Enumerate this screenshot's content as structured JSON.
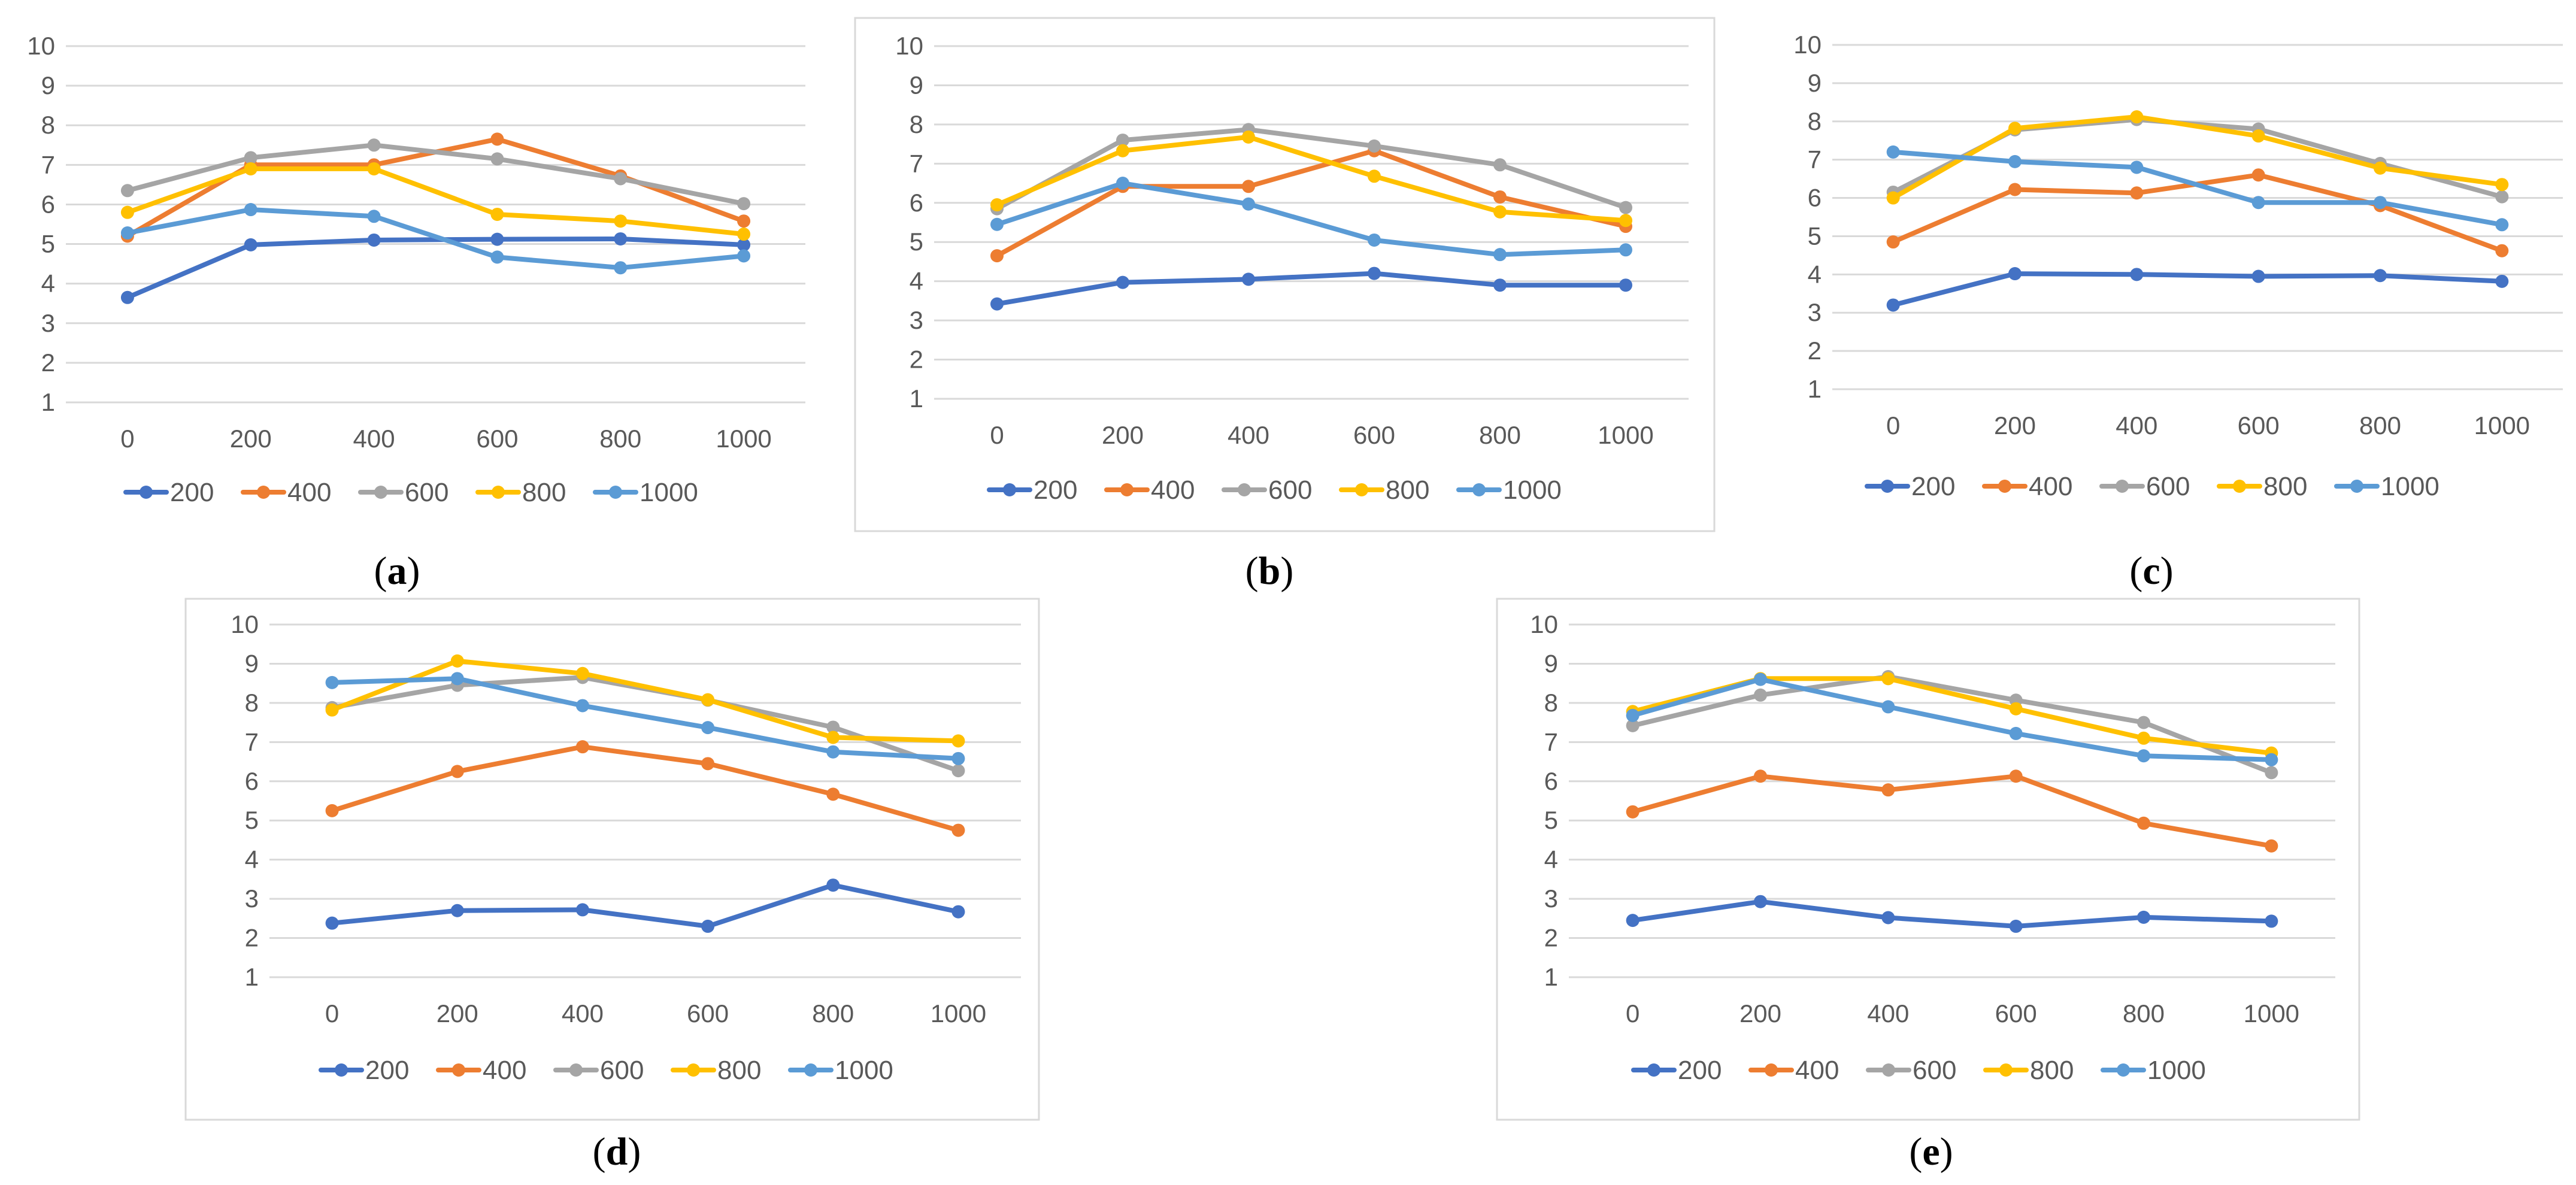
{
  "colors": {
    "s200": "#4472c4",
    "s400": "#ed7d31",
    "s600": "#a5a5a5",
    "s800": "#ffc000",
    "s1000": "#5b9bd5"
  },
  "chart_data": [
    {
      "id": "a",
      "type": "line",
      "caption_open": "(",
      "caption_letter": "a",
      "caption_close": ")",
      "x": [
        0,
        200,
        400,
        600,
        800,
        1000
      ],
      "categories": [
        "0",
        "200",
        "400",
        "600",
        "800",
        "1000"
      ],
      "ylim": [
        1,
        10
      ],
      "yticks": [
        1,
        2,
        3,
        4,
        5,
        6,
        7,
        8,
        9,
        10
      ],
      "grid": true,
      "legend_position": "bottom",
      "series": [
        {
          "name": "200",
          "values": [
            3.65,
            4.98,
            5.1,
            5.12,
            5.13,
            4.98
          ]
        },
        {
          "name": "400",
          "values": [
            5.2,
            7.0,
            7.0,
            7.65,
            6.72,
            5.58
          ]
        },
        {
          "name": "600",
          "values": [
            6.35,
            7.18,
            7.5,
            7.15,
            6.65,
            6.02
          ]
        },
        {
          "name": "800",
          "values": [
            5.8,
            6.9,
            6.9,
            5.75,
            5.58,
            5.25
          ]
        },
        {
          "name": "1000",
          "values": [
            5.28,
            5.87,
            5.7,
            4.67,
            4.4,
            4.7
          ]
        }
      ]
    },
    {
      "id": "b",
      "type": "line",
      "caption_open": "(",
      "caption_letter": "b",
      "caption_close": ")",
      "x": [
        0,
        200,
        400,
        600,
        800,
        1000
      ],
      "categories": [
        "0",
        "200",
        "400",
        "600",
        "800",
        "1000"
      ],
      "ylim": [
        1,
        10
      ],
      "yticks": [
        1,
        2,
        3,
        4,
        5,
        6,
        7,
        8,
        9,
        10
      ],
      "grid": true,
      "legend_position": "bottom",
      "series": [
        {
          "name": "200",
          "values": [
            3.42,
            3.97,
            4.05,
            4.2,
            3.9,
            3.9
          ]
        },
        {
          "name": "400",
          "values": [
            4.65,
            6.42,
            6.42,
            7.33,
            6.15,
            5.4
          ]
        },
        {
          "name": "600",
          "values": [
            5.85,
            7.6,
            7.87,
            7.45,
            6.97,
            5.88
          ]
        },
        {
          "name": "800",
          "values": [
            5.95,
            7.33,
            7.68,
            6.68,
            5.77,
            5.55
          ]
        },
        {
          "name": "1000",
          "values": [
            5.45,
            6.5,
            5.97,
            5.05,
            4.68,
            4.8
          ]
        }
      ]
    },
    {
      "id": "c",
      "type": "line",
      "caption_open": "(",
      "caption_letter": "c",
      "caption_close": ")",
      "x": [
        0,
        200,
        400,
        600,
        800,
        1000
      ],
      "categories": [
        "0",
        "200",
        "400",
        "600",
        "800",
        "1000"
      ],
      "ylim": [
        1,
        10
      ],
      "yticks": [
        1,
        2,
        3,
        4,
        5,
        6,
        7,
        8,
        9,
        10
      ],
      "grid": true,
      "legend_position": "bottom",
      "series": [
        {
          "name": "200",
          "values": [
            3.2,
            4.02,
            4.0,
            3.95,
            3.97,
            3.82
          ]
        },
        {
          "name": "400",
          "values": [
            4.85,
            6.22,
            6.13,
            6.6,
            5.8,
            4.62
          ]
        },
        {
          "name": "600",
          "values": [
            6.15,
            7.78,
            8.05,
            7.8,
            6.9,
            6.03
          ]
        },
        {
          "name": "800",
          "values": [
            6.0,
            7.82,
            8.12,
            7.62,
            6.78,
            6.35
          ]
        },
        {
          "name": "1000",
          "values": [
            7.2,
            6.95,
            6.8,
            5.88,
            5.88,
            5.3
          ]
        }
      ]
    },
    {
      "id": "d",
      "type": "line",
      "caption_open": "(",
      "caption_letter": "d",
      "caption_close": ")",
      "x": [
        0,
        200,
        400,
        600,
        800,
        1000
      ],
      "categories": [
        "0",
        "200",
        "400",
        "600",
        "800",
        "1000"
      ],
      "ylim": [
        1,
        10
      ],
      "yticks": [
        1,
        2,
        3,
        4,
        5,
        6,
        7,
        8,
        9,
        10
      ],
      "grid": true,
      "legend_position": "bottom",
      "series": [
        {
          "name": "200",
          "values": [
            2.38,
            2.7,
            2.72,
            2.3,
            3.35,
            2.67
          ]
        },
        {
          "name": "400",
          "values": [
            5.25,
            6.25,
            6.88,
            6.45,
            5.67,
            4.75
          ]
        },
        {
          "name": "600",
          "values": [
            7.88,
            8.45,
            8.65,
            8.07,
            7.38,
            6.27
          ]
        },
        {
          "name": "800",
          "values": [
            7.82,
            9.07,
            8.75,
            8.08,
            7.12,
            7.03
          ]
        },
        {
          "name": "1000",
          "values": [
            8.52,
            8.62,
            7.93,
            7.37,
            6.75,
            6.58
          ]
        }
      ]
    },
    {
      "id": "e",
      "type": "line",
      "caption_open": "(",
      "caption_letter": "e",
      "caption_close": ")",
      "x": [
        0,
        200,
        400,
        600,
        800,
        1000
      ],
      "categories": [
        "0",
        "200",
        "400",
        "600",
        "800",
        "1000"
      ],
      "ylim": [
        1,
        10
      ],
      "yticks": [
        1,
        2,
        3,
        4,
        5,
        6,
        7,
        8,
        9,
        10
      ],
      "grid": true,
      "legend_position": "bottom",
      "series": [
        {
          "name": "200",
          "values": [
            2.45,
            2.93,
            2.52,
            2.3,
            2.53,
            2.43
          ]
        },
        {
          "name": "400",
          "values": [
            5.22,
            6.13,
            5.78,
            6.13,
            4.93,
            4.35
          ]
        },
        {
          "name": "600",
          "values": [
            7.42,
            8.2,
            8.67,
            8.07,
            7.5,
            6.22
          ]
        },
        {
          "name": "800",
          "values": [
            7.78,
            8.62,
            8.62,
            7.85,
            7.1,
            6.72
          ]
        },
        {
          "name": "1000",
          "values": [
            7.68,
            8.6,
            7.9,
            7.22,
            6.65,
            6.55
          ]
        }
      ]
    }
  ]
}
